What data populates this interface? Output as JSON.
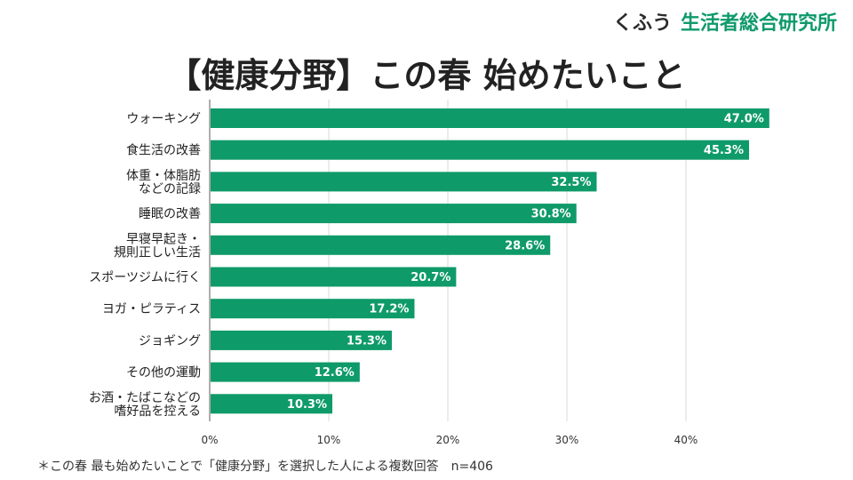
{
  "brand": {
    "part1": "くふう",
    "part2": "生活者総合研究所"
  },
  "chart_data": {
    "type": "bar",
    "orientation": "horizontal",
    "title": "【健康分野】この春 始めたいこと",
    "categories": [
      [
        "ウォーキング"
      ],
      [
        "食生活の改善"
      ],
      [
        "体重・体脂肪",
        "などの記録"
      ],
      [
        "睡眠の改善"
      ],
      [
        "早寝早起き・",
        "規則正しい生活"
      ],
      [
        "スポーツジムに行く"
      ],
      [
        "ヨガ・ピラティス"
      ],
      [
        "ジョギング"
      ],
      [
        "その他の運動"
      ],
      [
        "お酒・たばこなどの",
        "嗜好品を控える"
      ]
    ],
    "values": [
      47.0,
      45.3,
      32.5,
      30.8,
      28.6,
      20.7,
      17.2,
      15.3,
      12.6,
      10.3
    ],
    "value_labels": [
      "47.0%",
      "45.3%",
      "32.5%",
      "30.8%",
      "28.6%",
      "20.7%",
      "17.2%",
      "15.3%",
      "12.6%",
      "10.3%"
    ],
    "xlim": [
      0,
      50
    ],
    "xticks": [
      0,
      10,
      20,
      30,
      40
    ],
    "xtick_labels": [
      "0%",
      "10%",
      "20%",
      "30%",
      "40%"
    ],
    "grid": true,
    "bar_color": "#0f9a6a"
  },
  "footnote": "＊この春 最も始めたいことで「健康分野」を選択した人による複数回答　n=406"
}
